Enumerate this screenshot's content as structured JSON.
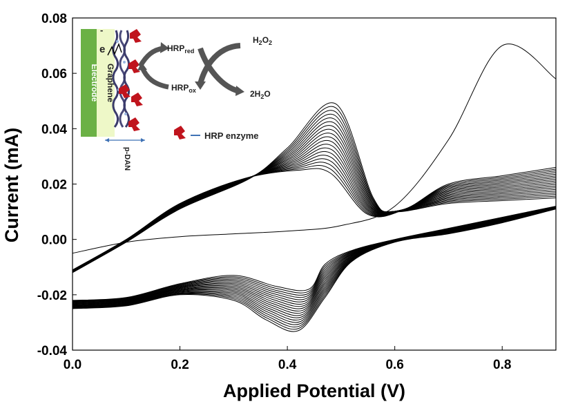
{
  "chart_data": {
    "type": "line",
    "xlabel": "Applied Potential (V)",
    "ylabel": "Current (mA)",
    "xlim": [
      0.0,
      0.9
    ],
    "ylim": [
      -0.04,
      0.08
    ],
    "x_ticks": [
      "0.0",
      "0.2",
      "0.4",
      "0.6",
      "0.8"
    ],
    "y_ticks": [
      "-0.04",
      "-0.02",
      "0.00",
      "0.02",
      "0.04",
      "0.06",
      "0.08"
    ],
    "grid": false,
    "legend": "none",
    "cycle_count": 19,
    "series": [
      {
        "x": [
          0.0,
          0.1,
          0.2,
          0.3,
          0.4,
          0.5,
          0.6,
          0.7,
          0.8,
          0.9
        ],
        "y": [
          -0.005,
          -0.001,
          0.001,
          0.002,
          0.003,
          0.005,
          0.012,
          0.036,
          0.07,
          0.058
        ]
      },
      {
        "x": [
          0.0,
          0.1,
          0.2,
          0.32,
          0.42,
          0.48,
          0.55,
          0.62,
          0.7,
          0.8,
          0.9
        ],
        "y": [
          -0.011,
          0.0,
          0.013,
          0.022,
          0.025,
          0.024,
          0.009,
          0.011,
          0.02,
          0.023,
          0.026
        ]
      },
      {
        "x": [
          0.0,
          0.1,
          0.2,
          0.33,
          0.4,
          0.49,
          0.56,
          0.6,
          0.7,
          0.8,
          0.9
        ],
        "y": [
          -0.012,
          -0.001,
          0.011,
          0.022,
          0.033,
          0.049,
          0.015,
          0.01,
          0.013,
          0.014,
          0.015
        ]
      },
      {
        "x": [
          0.9,
          0.8,
          0.7,
          0.6,
          0.52,
          0.47,
          0.44,
          0.38,
          0.3,
          0.2,
          0.1,
          0.0
        ],
        "y": [
          0.012,
          0.008,
          0.004,
          0.0,
          -0.004,
          -0.009,
          -0.018,
          -0.017,
          -0.013,
          -0.016,
          -0.021,
          -0.022
        ]
      },
      {
        "x": [
          0.9,
          0.8,
          0.7,
          0.6,
          0.52,
          0.47,
          0.42,
          0.36,
          0.3,
          0.2,
          0.1,
          0.0
        ],
        "y": [
          0.011,
          0.006,
          0.002,
          -0.001,
          -0.008,
          -0.021,
          -0.033,
          -0.029,
          -0.022,
          -0.02,
          -0.024,
          -0.025
        ]
      }
    ]
  },
  "inset": {
    "electrode_label": "Electrode",
    "graphene_label": "Graphene",
    "pdan_label": "p-DAN",
    "electron_label": "e",
    "minus_sign": "-",
    "hrp_red": "HRP",
    "hrp_red_sub": "red",
    "hrp_ox": "HRP",
    "hrp_ox_sub": "ox",
    "h2o2_a": "H",
    "h2o2_b": "2",
    "h2o2_c": "O",
    "h2o2_d": "2",
    "h2o_a": "2H",
    "h2o_b": "2",
    "h2o_c": "O",
    "enzyme_legend": "HRP enzyme",
    "colors": {
      "electrode": "#6bb145",
      "graphene": "#eef8c8",
      "enzyme": "#c0141d",
      "arrow": "#555555",
      "pdan_arrow": "#3f72b5"
    }
  }
}
